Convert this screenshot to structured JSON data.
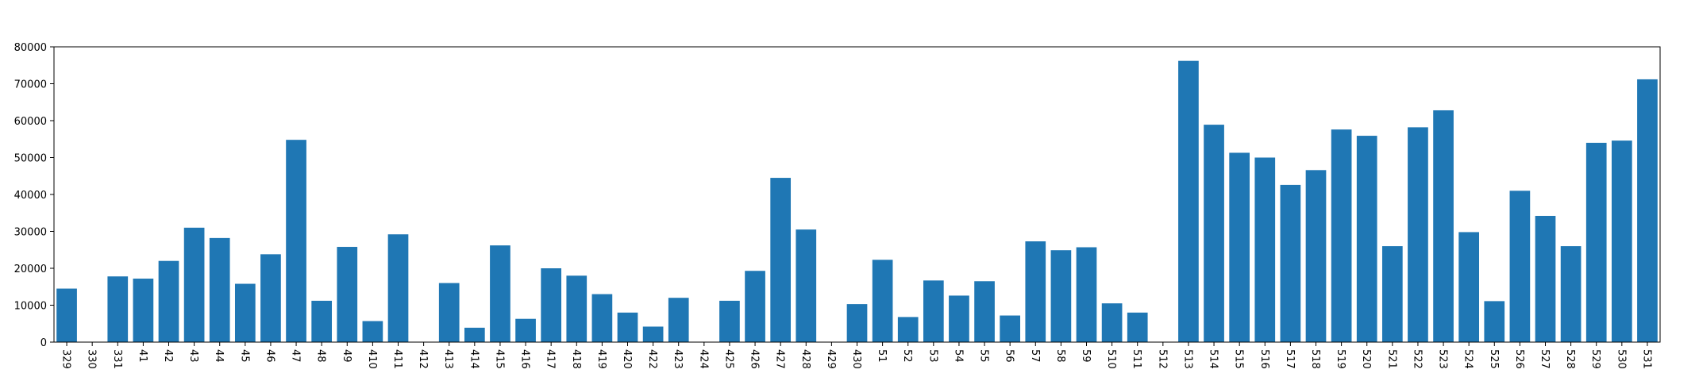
{
  "chart_data": {
    "type": "bar",
    "title": "",
    "xlabel": "",
    "ylabel": "",
    "ylim": [
      0,
      80000
    ],
    "yticks": [
      0,
      10000,
      20000,
      30000,
      40000,
      50000,
      60000,
      70000,
      80000
    ],
    "grid": false,
    "bar_color": "#1f77b4",
    "categories": [
      "329",
      "330",
      "331",
      "41",
      "42",
      "43",
      "44",
      "45",
      "46",
      "47",
      "48",
      "49",
      "410",
      "411",
      "412",
      "413",
      "414",
      "415",
      "416",
      "417",
      "418",
      "419",
      "420",
      "422",
      "423",
      "424",
      "425",
      "426",
      "427",
      "428",
      "429",
      "430",
      "51",
      "52",
      "53",
      "54",
      "55",
      "56",
      "57",
      "58",
      "59",
      "510",
      "511",
      "512",
      "513",
      "514",
      "515",
      "516",
      "517",
      "518",
      "519",
      "520",
      "521",
      "522",
      "523",
      "524",
      "525",
      "526",
      "527",
      "528",
      "529",
      "530",
      "531"
    ],
    "values": [
      14500,
      0,
      17800,
      17200,
      22000,
      31000,
      28200,
      15800,
      23800,
      54800,
      11200,
      25800,
      5700,
      29200,
      0,
      16000,
      3900,
      26200,
      6300,
      20000,
      18000,
      13000,
      8000,
      4200,
      12000,
      0,
      11200,
      19300,
      44500,
      30500,
      0,
      10300,
      22300,
      6800,
      16700,
      12600,
      16500,
      7200,
      27300,
      24900,
      25700,
      10500,
      8000,
      0,
      76200,
      58900,
      51300,
      50000,
      42600,
      46600,
      57600,
      55900,
      26000,
      58200,
      62800,
      29800,
      11100,
      41000,
      34200,
      26000,
      54000,
      54600,
      71200
    ]
  }
}
